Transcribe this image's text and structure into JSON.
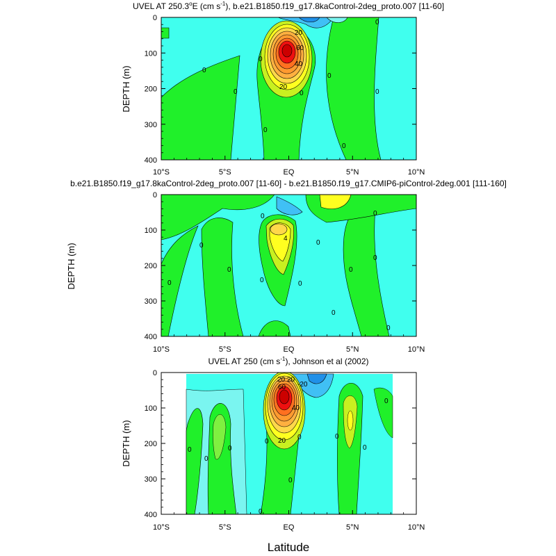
{
  "chart_data": [
    {
      "type": "contour",
      "title_main": "UVEL AT 250.3",
      "title_deg": "o",
      "title_rest": "E (cm s",
      "title_exp": "-1",
      "title_tail": "), b.e21.B1850.f19_g17.8kaControl-2deg_proto.007 [11-60]",
      "ylabel": "DEPTH (m)",
      "yticks": [
        "0",
        "100",
        "200",
        "300",
        "400"
      ],
      "xticks": [
        "10°S",
        "5°S",
        "EQ",
        "5°N",
        "10°N"
      ],
      "xlim": [
        -10,
        10
      ],
      "ylim": [
        400,
        0
      ],
      "core": {
        "lat": 0,
        "depth": 95,
        "max_cm_s": 100
      },
      "contour_labels": [
        "20",
        "40",
        "60",
        "20",
        "0",
        "0",
        "0",
        "0",
        "0",
        "0",
        "0",
        "0",
        "0"
      ]
    },
    {
      "type": "contour",
      "title": "b.e21.B1850.f19_g17.8kaControl-2deg_proto.007 [11-60] - b.e21.B1850.f19_g17.CMIP6-piControl-2deg.001 [111-160]",
      "ylabel": "DEPTH (m)",
      "yticks": [
        "0",
        "100",
        "200",
        "300",
        "400"
      ],
      "xticks": [
        "10°S",
        "5°S",
        "EQ",
        "5°N",
        "10°N"
      ],
      "xlim": [
        -10,
        10
      ],
      "ylim": [
        400,
        0
      ],
      "contour_labels": [
        "4",
        "0",
        "0",
        "0",
        "0",
        "0",
        "0",
        "0",
        "0",
        "0",
        "0",
        "0",
        "0"
      ]
    },
    {
      "type": "contour",
      "title_main": "UVEL AT 250 (cm s",
      "title_exp": "-1",
      "title_tail": "), Johnson et al (2002)",
      "ylabel": "DEPTH (m)",
      "xlabel": "Latitude",
      "yticks": [
        "0",
        "100",
        "200",
        "300",
        "400"
      ],
      "xticks": [
        "10°S",
        "5°S",
        "EQ",
        "5°N",
        "10°N"
      ],
      "xlim": [
        -10,
        10
      ],
      "ylim": [
        400,
        0
      ],
      "data_lat_range": [
        -8,
        8.2
      ],
      "core": {
        "lat": -0.2,
        "depth": 75,
        "max_cm_s": 100
      },
      "contour_labels": [
        "20",
        "20",
        "40",
        "60",
        "20",
        "-20",
        "0",
        "0",
        "0",
        "0",
        "0",
        "0",
        "0",
        "0",
        "0",
        "0"
      ]
    }
  ],
  "colors": {
    "cyan": "#40ffee",
    "cyan_light": "#7af5f0",
    "green": "#20f02a",
    "green_light": "#7ff040",
    "yellow_green": "#c8f020",
    "yellow": "#ffff20",
    "light_orange": "#ffd84a",
    "orange": "#ffb040",
    "orange_dark": "#ff9a30",
    "red_orange": "#ff7020",
    "red": "#ee1010",
    "deep_red": "#cc0000",
    "blue": "#40c0f5",
    "blue_dark": "#2090e8"
  }
}
